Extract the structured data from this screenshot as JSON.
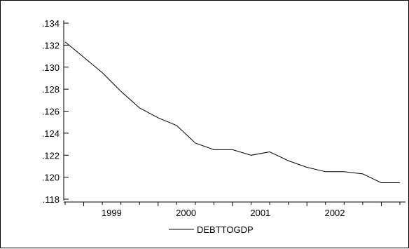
{
  "chart_data": {
    "type": "line",
    "title": "",
    "xlabel": "",
    "ylabel": "",
    "series": [
      {
        "name": "DEBTTOGDP",
        "color": "#000000",
        "x": [
          "1998Q4",
          "1999Q1",
          "1999Q2",
          "1999Q3",
          "1999Q4",
          "2000Q1",
          "2000Q2",
          "2000Q3",
          "2000Q4",
          "2001Q1",
          "2001Q2",
          "2001Q3",
          "2001Q4",
          "2002Q1",
          "2002Q2",
          "2002Q3",
          "2002Q4",
          "2003Q1",
          "2003Q2"
        ],
        "y": [
          0.1323,
          0.1309,
          0.1295,
          0.1278,
          0.1263,
          0.1254,
          0.1247,
          0.1231,
          0.1225,
          0.1225,
          0.122,
          0.1223,
          0.1215,
          0.1209,
          0.1205,
          0.1205,
          0.1203,
          0.1195,
          0.1195
        ]
      }
    ],
    "x_tick_labels": [
      "1999",
      "2000",
      "2001",
      "2002"
    ],
    "y_tick_labels": [
      ".118",
      ".120",
      ".122",
      ".124",
      ".126",
      ".128",
      ".130",
      ".132",
      ".134"
    ],
    "ylim": [
      0.118,
      0.134
    ],
    "xlim": [
      "1998Q4",
      "2003Q2"
    ],
    "grid": false,
    "legend": "bottom-center"
  }
}
